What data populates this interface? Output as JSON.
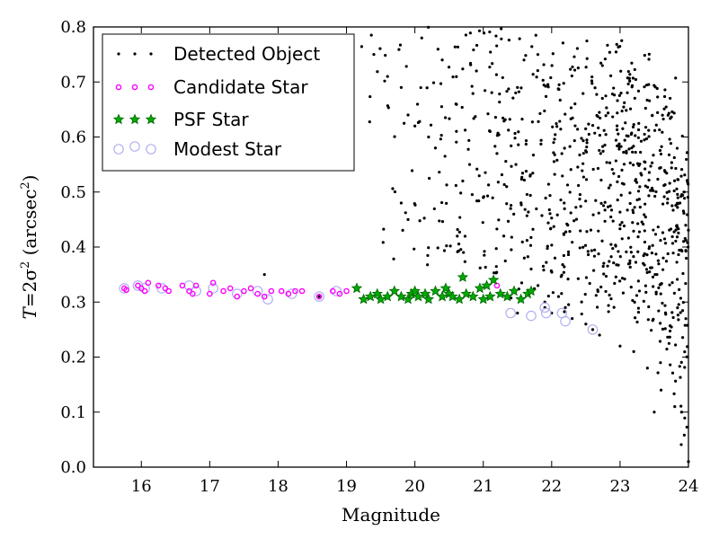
{
  "chart_data": {
    "type": "scatter",
    "xlabel": "Magnitude",
    "ylabel_parts": [
      "T",
      "=2σ",
      "2",
      " (arcsec",
      "2",
      ")"
    ],
    "xlim": [
      15.3,
      24
    ],
    "ylim": [
      0.0,
      0.8
    ],
    "xticks": [
      "16",
      "17",
      "18",
      "19",
      "20",
      "21",
      "22",
      "23",
      "24"
    ],
    "yticks": [
      "0.0",
      "0.1",
      "0.2",
      "0.3",
      "0.4",
      "0.5",
      "0.6",
      "0.7",
      "0.8"
    ],
    "grid": false,
    "legend_position": "top-left",
    "colors": {
      "detected": "#000000",
      "candidate": "#ff00ff",
      "psf_fill": "#00aa00",
      "psf_edge": "#006600",
      "modest": "#b0b0f0"
    },
    "series": [
      {
        "name": "Detected Object",
        "marker": "dot",
        "description": "dense cloud of faint detected objects",
        "points": [
          [
            17.8,
            0.35
          ],
          [
            18.6,
            0.31
          ],
          [
            19.4,
            0.75
          ],
          [
            19.6,
            0.71
          ],
          [
            19.8,
            0.69
          ],
          [
            19.9,
            0.64
          ],
          [
            19.8,
            0.48
          ],
          [
            19.9,
            0.45
          ],
          [
            20.0,
            0.62
          ],
          [
            20.2,
            0.6
          ],
          [
            20.3,
            0.58
          ],
          [
            20.1,
            0.78
          ],
          [
            20.4,
            0.74
          ],
          [
            20.6,
            0.66
          ],
          [
            20.7,
            0.52
          ],
          [
            20.8,
            0.55
          ],
          [
            20.9,
            0.72
          ],
          [
            21.0,
            0.49
          ],
          [
            21.1,
            0.61
          ],
          [
            21.2,
            0.57
          ],
          [
            21.3,
            0.42
          ],
          [
            21.4,
            0.47
          ],
          [
            21.5,
            0.69
          ],
          [
            21.6,
            0.38
          ],
          [
            21.7,
            0.36
          ],
          [
            21.8,
            0.33
          ],
          [
            21.9,
            0.3
          ],
          [
            22.0,
            0.28
          ],
          [
            22.1,
            0.31
          ],
          [
            22.3,
            0.27
          ],
          [
            22.5,
            0.26
          ],
          [
            22.7,
            0.24
          ],
          [
            23.0,
            0.22
          ],
          [
            23.2,
            0.21
          ],
          [
            23.4,
            0.18
          ],
          [
            23.6,
            0.14
          ],
          [
            23.8,
            0.11
          ],
          [
            23.9,
            0.1
          ],
          [
            23.5,
            0.1
          ],
          [
            24.0,
            0.01
          ],
          [
            21.5,
            0.28
          ],
          [
            22.6,
            0.25
          ],
          [
            22.2,
            0.29
          ],
          [
            21.9,
            0.29
          ]
        ]
      },
      {
        "name": "Candidate Star",
        "marker": "small-circle",
        "points": [
          [
            15.75,
            0.325
          ],
          [
            15.78,
            0.322
          ],
          [
            15.95,
            0.33
          ],
          [
            16.0,
            0.325
          ],
          [
            16.05,
            0.32
          ],
          [
            16.1,
            0.335
          ],
          [
            16.25,
            0.33
          ],
          [
            16.35,
            0.325
          ],
          [
            16.4,
            0.32
          ],
          [
            16.6,
            0.33
          ],
          [
            16.7,
            0.32
          ],
          [
            16.75,
            0.315
          ],
          [
            16.8,
            0.33
          ],
          [
            17.0,
            0.315
          ],
          [
            17.05,
            0.335
          ],
          [
            17.2,
            0.32
          ],
          [
            17.3,
            0.325
          ],
          [
            17.4,
            0.31
          ],
          [
            17.5,
            0.32
          ],
          [
            17.6,
            0.325
          ],
          [
            17.7,
            0.315
          ],
          [
            17.8,
            0.31
          ],
          [
            17.9,
            0.32
          ],
          [
            18.05,
            0.32
          ],
          [
            18.15,
            0.315
          ],
          [
            18.25,
            0.32
          ],
          [
            18.35,
            0.32
          ],
          [
            18.6,
            0.31
          ],
          [
            18.8,
            0.32
          ],
          [
            18.9,
            0.315
          ],
          [
            19.0,
            0.32
          ],
          [
            21.2,
            0.33
          ]
        ]
      },
      {
        "name": "PSF Star",
        "marker": "star",
        "points": [
          [
            19.15,
            0.325
          ],
          [
            19.25,
            0.305
          ],
          [
            19.35,
            0.31
          ],
          [
            19.45,
            0.315
          ],
          [
            19.5,
            0.305
          ],
          [
            19.6,
            0.31
          ],
          [
            19.7,
            0.32
          ],
          [
            19.8,
            0.31
          ],
          [
            19.9,
            0.305
          ],
          [
            19.95,
            0.315
          ],
          [
            20.0,
            0.32
          ],
          [
            20.05,
            0.31
          ],
          [
            20.15,
            0.315
          ],
          [
            20.2,
            0.305
          ],
          [
            20.3,
            0.32
          ],
          [
            20.4,
            0.31
          ],
          [
            20.45,
            0.325
          ],
          [
            20.5,
            0.315
          ],
          [
            20.55,
            0.31
          ],
          [
            20.65,
            0.305
          ],
          [
            20.7,
            0.345
          ],
          [
            20.75,
            0.315
          ],
          [
            20.85,
            0.31
          ],
          [
            20.95,
            0.325
          ],
          [
            21.0,
            0.305
          ],
          [
            21.05,
            0.33
          ],
          [
            21.1,
            0.31
          ],
          [
            21.15,
            0.34
          ],
          [
            21.25,
            0.315
          ],
          [
            21.35,
            0.31
          ],
          [
            21.45,
            0.32
          ],
          [
            21.55,
            0.305
          ],
          [
            21.65,
            0.315
          ],
          [
            21.7,
            0.32
          ]
        ]
      },
      {
        "name": "Modest Star",
        "marker": "open-circle",
        "points": [
          [
            15.75,
            0.325
          ],
          [
            15.95,
            0.33
          ],
          [
            16.05,
            0.325
          ],
          [
            16.3,
            0.325
          ],
          [
            16.7,
            0.33
          ],
          [
            16.8,
            0.32
          ],
          [
            17.05,
            0.325
          ],
          [
            17.4,
            0.315
          ],
          [
            17.7,
            0.32
          ],
          [
            17.85,
            0.305
          ],
          [
            18.2,
            0.315
          ],
          [
            18.6,
            0.31
          ],
          [
            18.85,
            0.32
          ],
          [
            21.4,
            0.28
          ],
          [
            21.7,
            0.275
          ],
          [
            21.9,
            0.29
          ],
          [
            21.92,
            0.28
          ],
          [
            22.15,
            0.28
          ],
          [
            22.2,
            0.265
          ],
          [
            22.6,
            0.25
          ]
        ]
      }
    ]
  }
}
